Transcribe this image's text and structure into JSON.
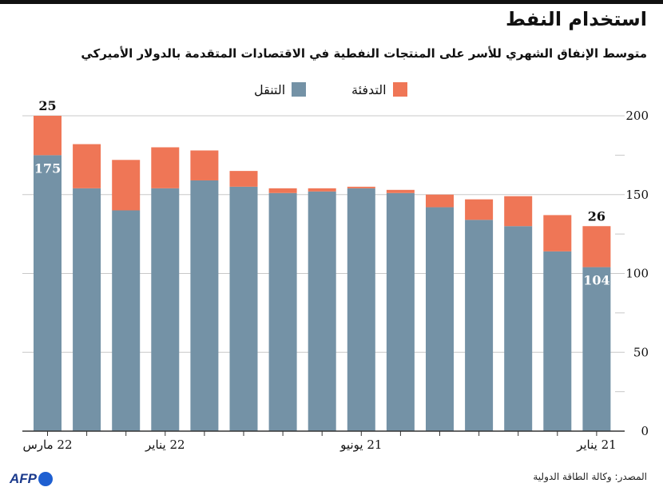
{
  "header": {
    "title": "استخدام النفط",
    "subtitle": "متوسط الإنفاق الشهري للأسر على المنتجات النفطية في الاقتصادات المتقدمة بالدولار الأميركي"
  },
  "legend": {
    "heating_label": "التدفئة",
    "transport_label": "التنقل"
  },
  "colors": {
    "transport": "#7492a6",
    "heating": "#ef7656",
    "grid": "#c8c8c8",
    "axis": "#333333"
  },
  "footer": {
    "source": "المصدر: وكالة الطاقة الدولية",
    "logo": "AFP"
  },
  "chart_data": {
    "type": "bar",
    "stacked": true,
    "categories": [
      "22 مارس",
      "",
      "",
      "22 يناير",
      "",
      "",
      "",
      "",
      "21 يونيو",
      "",
      "",
      "",
      "",
      "",
      "21 يناير"
    ],
    "series": [
      {
        "name": "التنقل",
        "values": [
          175,
          154,
          140,
          154,
          159,
          155,
          151,
          152,
          154,
          151,
          142,
          134,
          130,
          114,
          104
        ]
      },
      {
        "name": "التدفئة",
        "values": [
          25,
          28,
          32,
          26,
          19,
          10,
          3,
          2,
          1,
          2,
          8,
          13,
          19,
          23,
          26
        ]
      }
    ],
    "ylim": [
      0,
      200
    ],
    "yticks": [
      0,
      50,
      100,
      150,
      200
    ],
    "grid": true,
    "legend_position": "top",
    "data_labels": [
      {
        "bar": 0,
        "series": 0,
        "text": "175"
      },
      {
        "bar": 0,
        "series": 1,
        "text": "25"
      },
      {
        "bar": 14,
        "series": 0,
        "text": "104"
      },
      {
        "bar": 14,
        "series": 1,
        "text": "26"
      }
    ]
  }
}
